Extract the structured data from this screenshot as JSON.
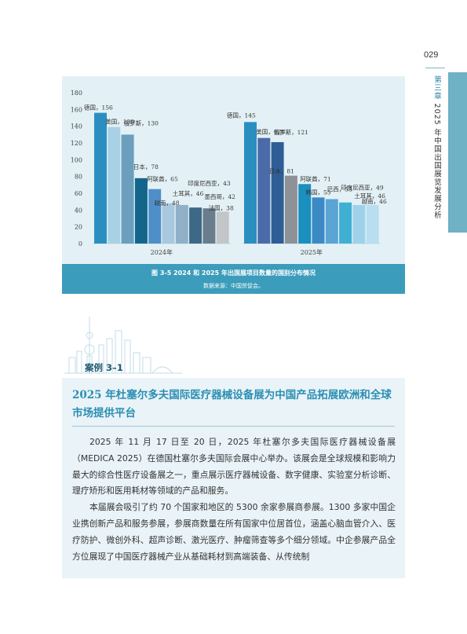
{
  "page": {
    "number": "029",
    "chapter_prefix": "第三章",
    "chapter_title": "2025 年中国出国展览发展分析"
  },
  "figure": {
    "caption": "图 3-5   2024 和 2025 年出国展项目数量的国别分布情况",
    "source": "数据来源：中国贸促会。"
  },
  "chart_data": {
    "type": "bar",
    "title": "",
    "xlabel": "",
    "ylabel": "",
    "ylim": [
      0,
      180
    ],
    "yticks": [
      0,
      20,
      40,
      60,
      80,
      100,
      120,
      140,
      160,
      180
    ],
    "grid": false,
    "groups": [
      {
        "name": "2024年",
        "bars": [
          {
            "label": "德国，156",
            "value": 156,
            "color": "#2a8fc0"
          },
          {
            "label": "美国，139",
            "value": 139,
            "color": "#a9d1e6"
          },
          {
            "label": "俄罗斯，130",
            "value": 130,
            "color": "#6b9fbd"
          },
          {
            "label": "日本，78",
            "value": 78,
            "color": "#13658b"
          },
          {
            "label": "阿联酋，65",
            "value": 65,
            "color": "#4f8fc9"
          },
          {
            "label": "越南，48",
            "value": 48,
            "color": "#a8c8de"
          },
          {
            "label": "土耳其，46",
            "value": 46,
            "color": "#8fb0c6"
          },
          {
            "label": "印度尼西亚，43",
            "value": 43,
            "color": "#3d6888"
          },
          {
            "label": "墨西哥，42",
            "value": 42,
            "color": "#6a7d8c"
          },
          {
            "label": "法国，38",
            "value": 38,
            "color": "#c3c6c9"
          }
        ]
      },
      {
        "name": "2025年",
        "bars": [
          {
            "label": "德国，145",
            "value": 145,
            "color": "#2a8fc0"
          },
          {
            "label": "美国，126",
            "value": 126,
            "color": "#4b6aa8"
          },
          {
            "label": "俄罗斯，121",
            "value": 121,
            "color": "#2f5d96"
          },
          {
            "label": "日本，81",
            "value": 81,
            "color": "#8e9196"
          },
          {
            "label": "阿联酋，71",
            "value": 71,
            "color": "#1b8fbe"
          },
          {
            "label": "韩国，55",
            "value": 55,
            "color": "#3b8ac6"
          },
          {
            "label": "巴西，53",
            "value": 53,
            "color": "#5aa4d6"
          },
          {
            "label": "印度尼西亚，49",
            "value": 49,
            "color": "#3fb0d4"
          },
          {
            "label": "土耳其，46",
            "value": 46,
            "color": "#9fd2ea"
          },
          {
            "label": "越南，46",
            "value": 46,
            "color": "#b8def0"
          }
        ]
      }
    ]
  },
  "case": {
    "label": "案例 3–1",
    "title": "2025 年杜塞尔多夫国际医疗器械设备展为中国产品拓展欧洲和全球市场提供平台",
    "paragraphs": [
      "2025 年 11 月 17 日至 20 日，2025 年杜塞尔多夫国际医疗器械设备展（MEDICA 2025）在德国杜塞尔多夫国际会展中心举办。该展会是全球规模和影响力最大的综合性医疗设备展之一，重点展示医疗器械设备、数字健康、实验室分析诊断、理疗矫形和医用耗材等领域的产品和服务。",
      "本届展会吸引了约 70 个国家和地区的 5300 余家参展商参展。1300 多家中国企业携创新产品和服务参展，参展商数量在所有国家中位居首位，涵盖心脑血管介入、医疗防护、微创外科、超声诊断、激光医疗、肿瘤筛查等多个细分领域。中企参展产品全方位展现了中国医疗器械产业从基础耗材到高端装备、从传统制"
    ]
  }
}
